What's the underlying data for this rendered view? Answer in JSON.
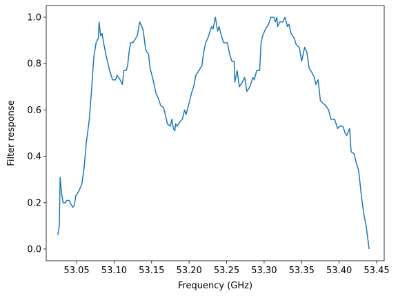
{
  "chart_data": {
    "type": "line",
    "xlabel": "Frequency (GHz)",
    "ylabel": "Filter response",
    "x": [
      53.025,
      53.027,
      53.028,
      53.03,
      53.032,
      53.035,
      53.037,
      53.04,
      53.043,
      53.045,
      53.047,
      53.049,
      53.053,
      53.057,
      53.06,
      53.063,
      53.067,
      53.07,
      53.073,
      53.076,
      53.079,
      53.08,
      53.082,
      53.084,
      53.086,
      53.089,
      53.094,
      53.098,
      53.102,
      53.104,
      53.108,
      53.111,
      53.113,
      53.116,
      53.118,
      53.12,
      53.122,
      53.125,
      53.129,
      53.131,
      53.134,
      53.137,
      53.139,
      53.142,
      53.146,
      53.148,
      53.152,
      53.156,
      53.159,
      53.162,
      53.166,
      53.169,
      53.171,
      53.175,
      53.177,
      53.179,
      53.181,
      53.182,
      53.184,
      53.188,
      53.191,
      53.194,
      53.196,
      53.2,
      53.203,
      53.206,
      53.209,
      53.213,
      53.217,
      53.219,
      53.222,
      53.225,
      53.228,
      53.23,
      53.232,
      53.235,
      53.238,
      53.24,
      53.243,
      53.246,
      53.251,
      53.254,
      53.257,
      53.26,
      53.261,
      53.264,
      53.267,
      53.271,
      53.274,
      53.277,
      53.281,
      53.285,
      53.287,
      53.29,
      53.294,
      53.296,
      53.298,
      53.302,
      53.306,
      53.309,
      53.313,
      53.315,
      53.317,
      53.318,
      53.321,
      53.325,
      53.328,
      53.331,
      53.333,
      53.336,
      53.34,
      53.343,
      53.347,
      53.35,
      53.354,
      53.357,
      53.36,
      53.364,
      53.367,
      53.369,
      53.372,
      53.375,
      53.378,
      53.382,
      53.386,
      53.389,
      53.394,
      53.398,
      53.401,
      53.405,
      53.408,
      53.41,
      53.414,
      53.416,
      53.42,
      53.423,
      53.426,
      53.428,
      53.43,
      53.433,
      53.436,
      53.44
    ],
    "series": [
      {
        "name": "Filter response",
        "color": "#1f77b4",
        "values": [
          0.06,
          0.1,
          0.31,
          0.24,
          0.2,
          0.2,
          0.21,
          0.21,
          0.19,
          0.18,
          0.19,
          0.23,
          0.25,
          0.28,
          0.35,
          0.46,
          0.56,
          0.69,
          0.83,
          0.89,
          0.91,
          0.98,
          0.92,
          0.93,
          0.89,
          0.84,
          0.77,
          0.73,
          0.73,
          0.75,
          0.73,
          0.71,
          0.77,
          0.77,
          0.79,
          0.85,
          0.89,
          0.89,
          0.91,
          0.92,
          0.98,
          0.96,
          0.94,
          0.86,
          0.84,
          0.78,
          0.73,
          0.67,
          0.65,
          0.62,
          0.61,
          0.57,
          0.54,
          0.53,
          0.56,
          0.52,
          0.51,
          0.54,
          0.53,
          0.55,
          0.56,
          0.6,
          0.58,
          0.63,
          0.67,
          0.7,
          0.75,
          0.77,
          0.79,
          0.84,
          0.89,
          0.91,
          0.94,
          0.96,
          0.95,
          1.0,
          0.94,
          0.96,
          0.92,
          0.89,
          0.89,
          0.84,
          0.81,
          0.81,
          0.72,
          0.77,
          0.7,
          0.72,
          0.74,
          0.68,
          0.7,
          0.74,
          0.73,
          0.77,
          0.77,
          0.89,
          0.92,
          0.95,
          0.97,
          1.0,
          1.0,
          0.98,
          1.0,
          0.96,
          0.98,
          0.98,
          1.0,
          0.96,
          0.97,
          0.93,
          0.91,
          0.88,
          0.87,
          0.81,
          0.87,
          0.85,
          0.78,
          0.76,
          0.74,
          0.71,
          0.73,
          0.64,
          0.63,
          0.62,
          0.6,
          0.56,
          0.56,
          0.52,
          0.53,
          0.53,
          0.5,
          0.49,
          0.52,
          0.42,
          0.41,
          0.37,
          0.34,
          0.28,
          0.22,
          0.15,
          0.1,
          0.0
        ]
      }
    ],
    "xlim": [
      53.0095,
      53.4601
    ],
    "ylim": [
      -0.0506,
      1.0506
    ],
    "xticks": [
      53.05,
      {
        "value": 53.1,
        "label": "53.10"
      },
      53.15,
      {
        "value": 53.2,
        "label": "53.20"
      },
      53.25,
      {
        "value": 53.3,
        "label": "53.30"
      },
      53.35,
      {
        "value": 53.4,
        "label": "53.40"
      },
      53.45
    ],
    "yticks": [
      {
        "value": 0,
        "label": "0.0"
      },
      0.2,
      0.4,
      0.6,
      0.8,
      {
        "value": 1,
        "label": "1.0"
      }
    ],
    "grid": false
  }
}
